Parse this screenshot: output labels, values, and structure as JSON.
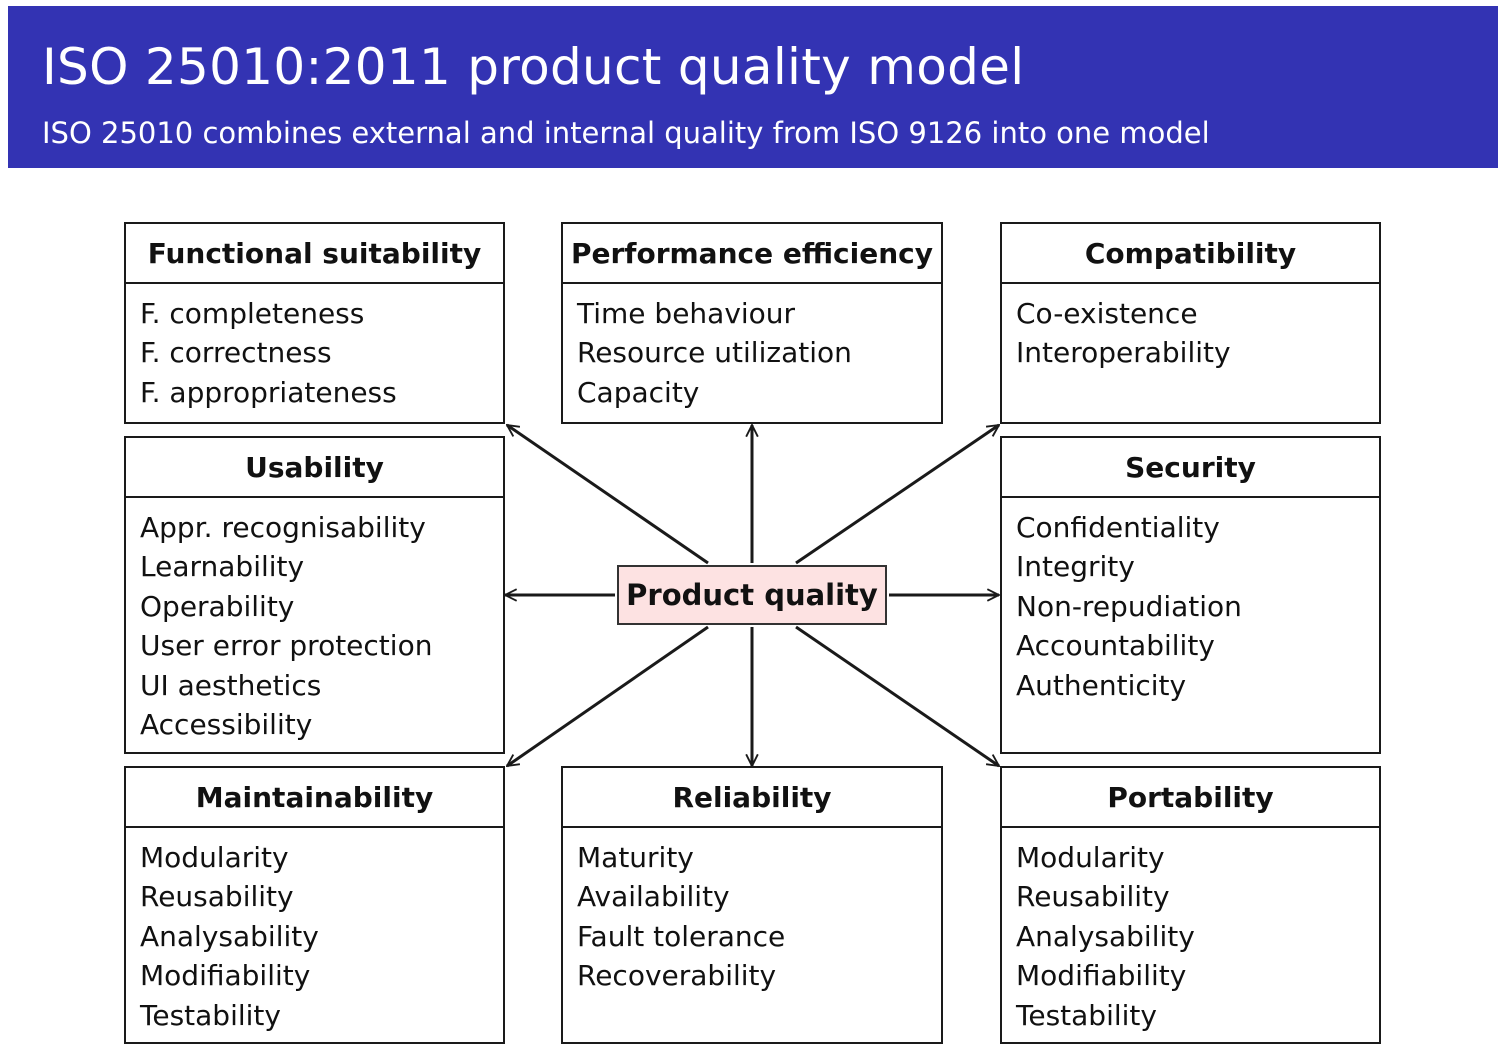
{
  "header": {
    "title": "ISO 25010:2011 product quality model",
    "subtitle": "ISO 25010 combines external and internal quality from ISO 9126 into one model"
  },
  "center": {
    "label": "Product quality"
  },
  "boxes": [
    {
      "title": "Functional suitability",
      "items": [
        "F. completeness",
        "F. correctness",
        "F. appropriateness"
      ]
    },
    {
      "title": "Performance efficiency",
      "items": [
        "Time behaviour",
        "Resource utilization",
        "Capacity"
      ]
    },
    {
      "title": "Compatibility",
      "items": [
        "Co-existence",
        "Interoperability"
      ]
    },
    {
      "title": "Usability",
      "items": [
        "Appr. recognisability",
        "Learnability",
        "Operability",
        "User error protection",
        "UI aesthetics",
        "Accessibility"
      ]
    },
    {
      "title": "Security",
      "items": [
        "Confidentiality",
        "Integrity",
        "Non-repudiation",
        "Accountability",
        "Authenticity"
      ]
    },
    {
      "title": "Maintainability",
      "items": [
        "Modularity",
        "Reusability",
        "Analysability",
        "Modifiability",
        "Testability"
      ]
    },
    {
      "title": "Reliability",
      "items": [
        "Maturity",
        "Availability",
        "Fault tolerance",
        "Recoverability"
      ]
    },
    {
      "title": "Portability",
      "items": [
        "Modularity",
        "Reusability",
        "Analysability",
        "Modifiability",
        "Testability"
      ]
    }
  ],
  "colors": {
    "header_bg": "#3333b3",
    "center_bg": "#fde2e2"
  }
}
